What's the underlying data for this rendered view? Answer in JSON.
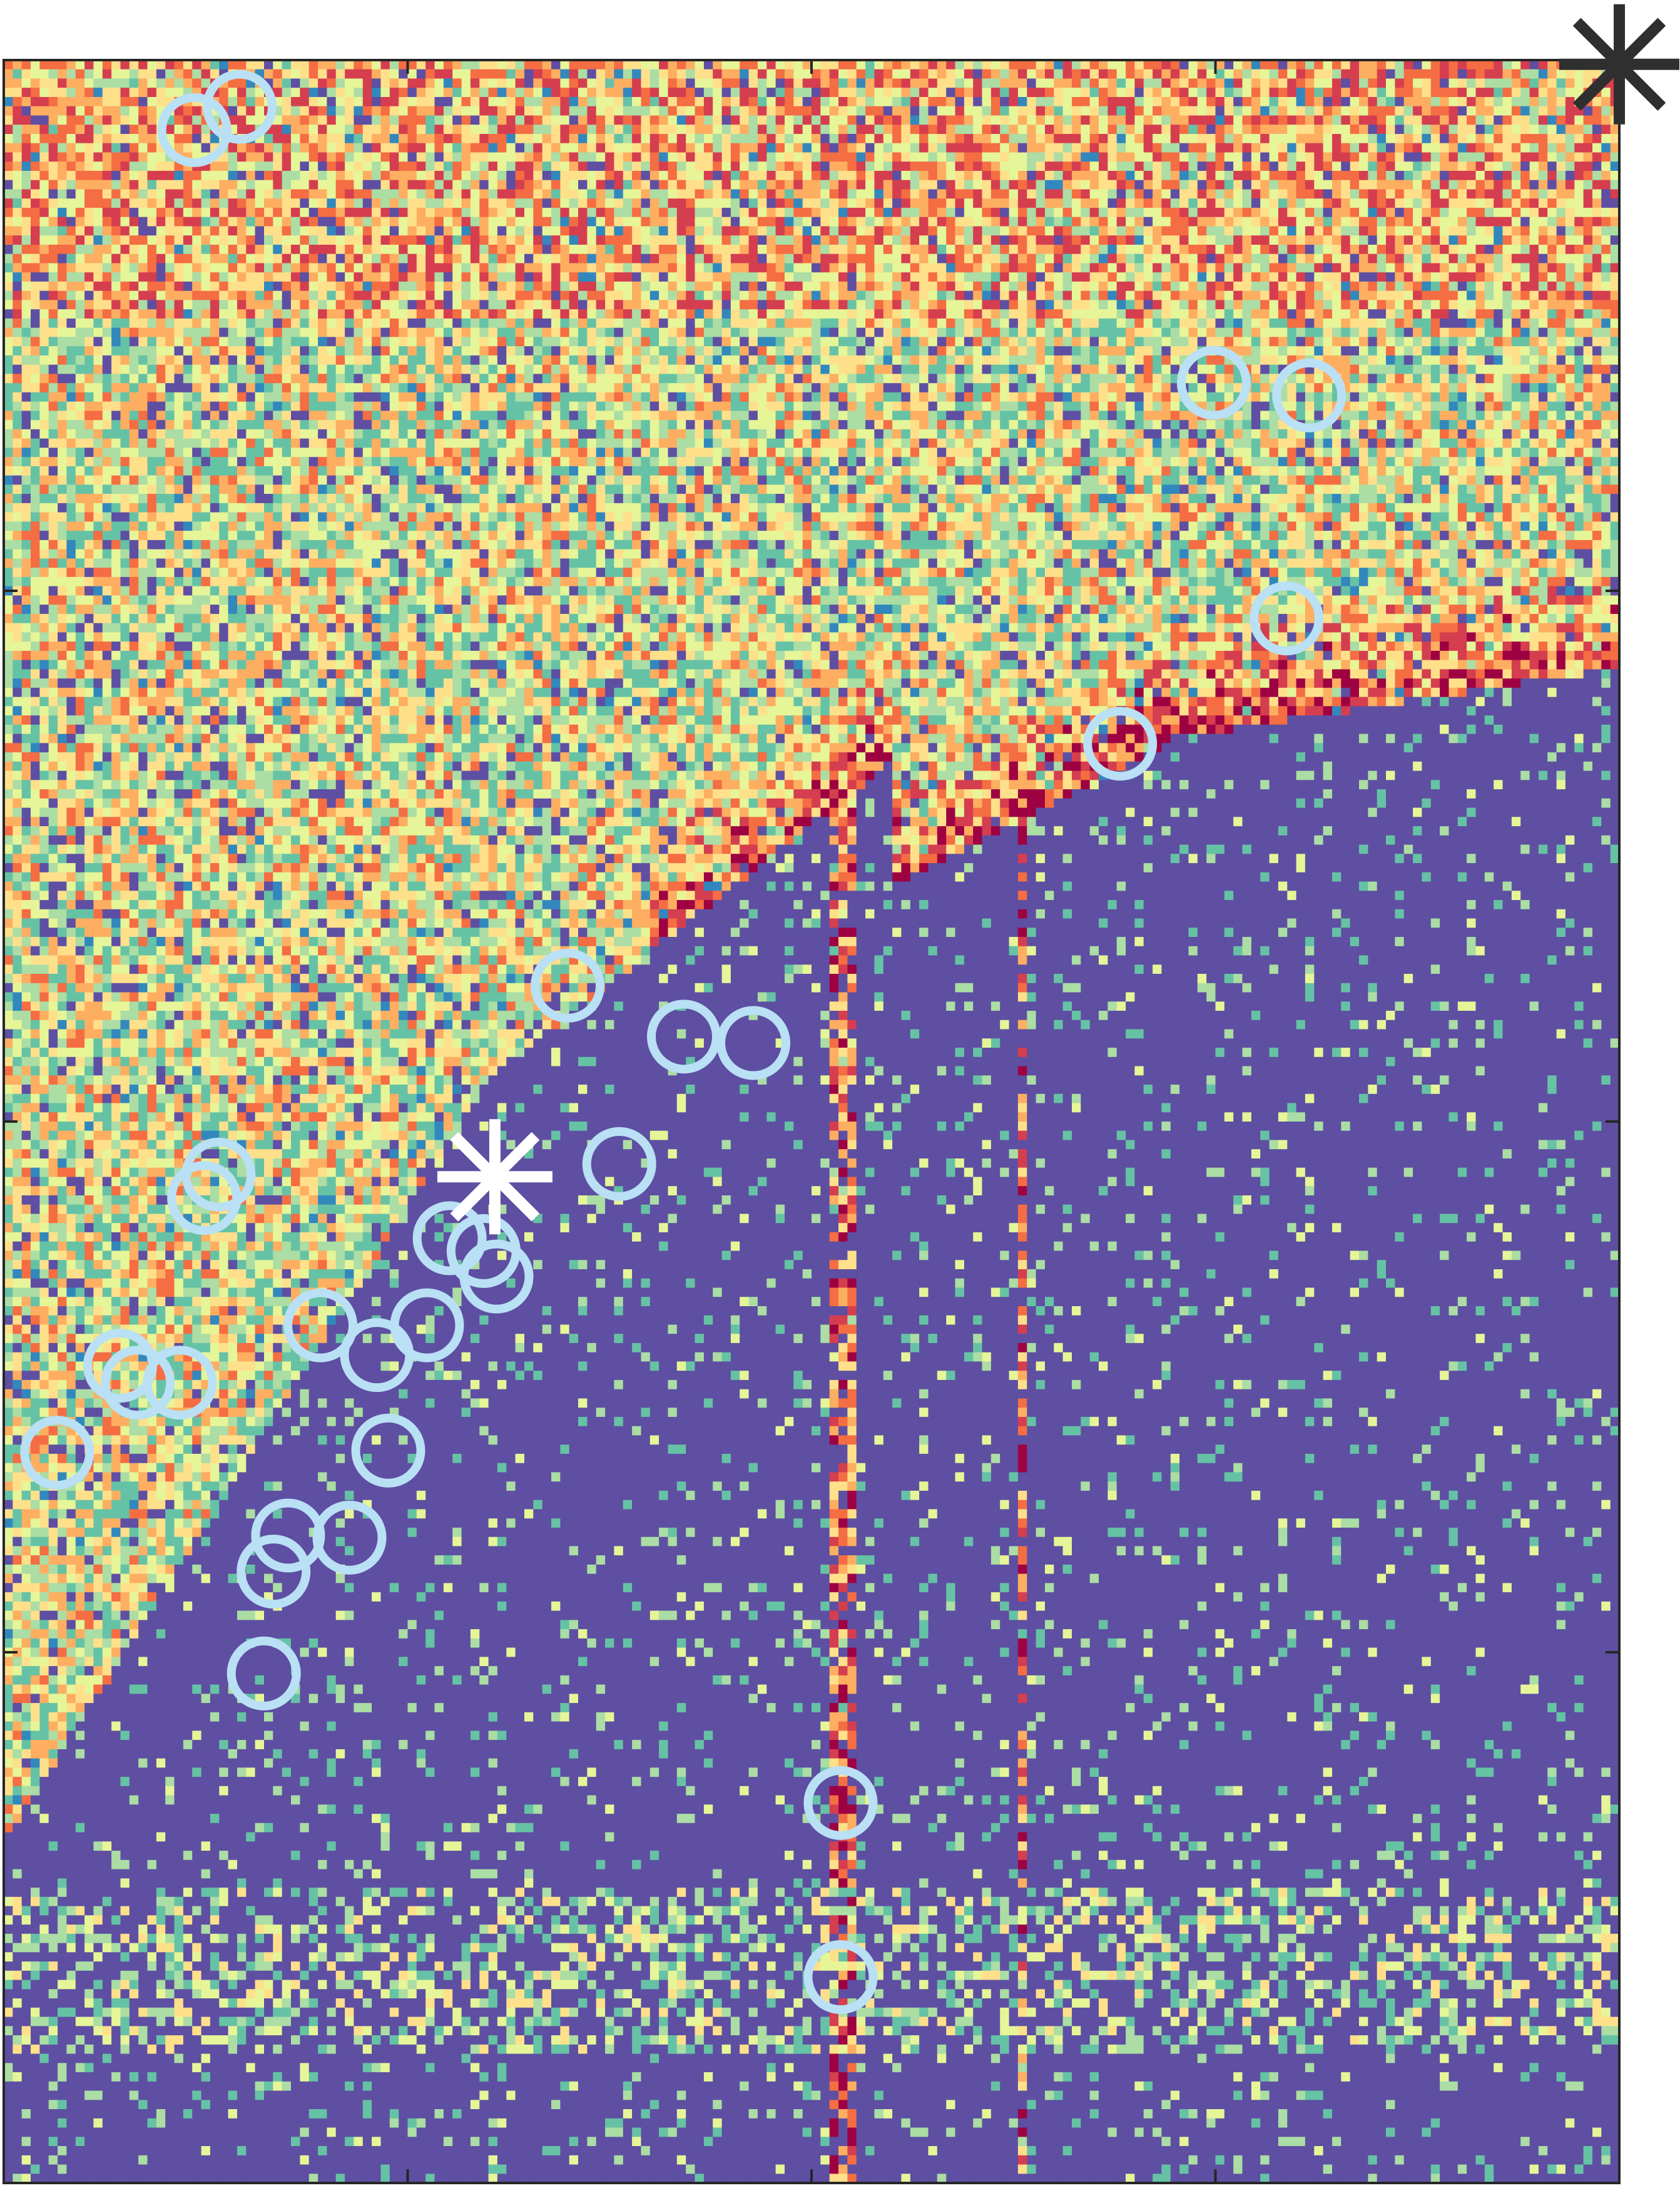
{
  "chart_data": {
    "type": "heatmap",
    "title": "",
    "xlabel": "",
    "ylabel": "",
    "tick_labels": false,
    "grid": false,
    "legend": "none",
    "colormap": [
      "#5e4fa2",
      "#3288bd",
      "#66c2a5",
      "#abdda4",
      "#e6f598",
      "#fee08b",
      "#fdae61",
      "#f46d43",
      "#d53e4f",
      "#9e0142"
    ],
    "xlim": [
      0,
      1
    ],
    "ylim": [
      0,
      1
    ],
    "xticks": [
      0,
      0.25,
      0.5,
      0.75,
      1
    ],
    "yticks": [
      0,
      0.25,
      0.5,
      0.75,
      1
    ],
    "colors": {
      "circle_marker": "#b9e0f4",
      "white_marker": "#ffffff",
      "dark_marker": "#2f2f2f",
      "axes": "#262626",
      "background": "#ffffff"
    },
    "circle_markers": [
      {
        "x": 0.118,
        "y": 0.967
      },
      {
        "x": 0.146,
        "y": 0.978
      },
      {
        "x": 0.749,
        "y": 0.848
      },
      {
        "x": 0.808,
        "y": 0.842
      },
      {
        "x": 0.794,
        "y": 0.737
      },
      {
        "x": 0.691,
        "y": 0.678
      },
      {
        "x": 0.349,
        "y": 0.564
      },
      {
        "x": 0.421,
        "y": 0.54
      },
      {
        "x": 0.464,
        "y": 0.537
      },
      {
        "x": 0.381,
        "y": 0.48
      },
      {
        "x": 0.133,
        "y": 0.475
      },
      {
        "x": 0.124,
        "y": 0.464
      },
      {
        "x": 0.276,
        "y": 0.445
      },
      {
        "x": 0.297,
        "y": 0.439
      },
      {
        "x": 0.305,
        "y": 0.427
      },
      {
        "x": 0.196,
        "y": 0.404
      },
      {
        "x": 0.262,
        "y": 0.404
      },
      {
        "x": 0.231,
        "y": 0.39
      },
      {
        "x": 0.072,
        "y": 0.385
      },
      {
        "x": 0.083,
        "y": 0.377
      },
      {
        "x": 0.109,
        "y": 0.377
      },
      {
        "x": 0.238,
        "y": 0.345
      },
      {
        "x": 0.033,
        "y": 0.344
      },
      {
        "x": 0.176,
        "y": 0.305
      },
      {
        "x": 0.214,
        "y": 0.304
      },
      {
        "x": 0.167,
        "y": 0.288
      },
      {
        "x": 0.161,
        "y": 0.24
      },
      {
        "x": 0.518,
        "y": 0.179
      },
      {
        "x": 0.518,
        "y": 0.097
      }
    ],
    "white_star": {
      "x": 0.304,
      "y": 0.474
    },
    "dark_star": {
      "x": 1.0,
      "y": 0.998
    }
  }
}
